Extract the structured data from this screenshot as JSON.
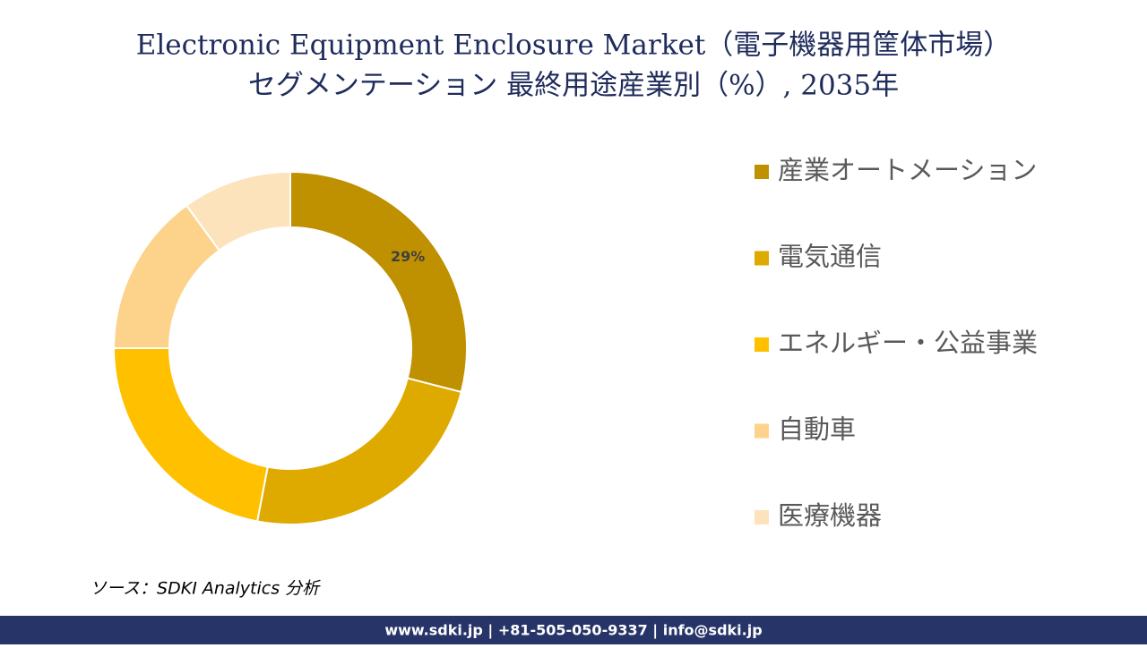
{
  "chart_data": {
    "type": "donut",
    "title": [
      "Electronic Equipment Enclosure Market（電子機器用筐体市場）",
      "セグメンテーション 最終用途産業別（%）, 2035年"
    ],
    "categories": [
      "産業オートメーション",
      "電気通信",
      "エネルギー・公益事業",
      "自動車",
      "医療機器"
    ],
    "values": [
      29,
      24,
      22,
      15,
      10
    ],
    "value_labels": [
      "29%",
      null,
      null,
      null,
      null
    ],
    "colors": [
      "#bf9000",
      "#dfaa00",
      "#ffc000",
      "#fdd28a",
      "#fde3bc"
    ],
    "legend": "right"
  },
  "footer": {
    "source": "ソース：SDKI Analytics 分析",
    "contact": "www.sdki.jp | +81-505-050-9337 | info@sdki.jp"
  }
}
